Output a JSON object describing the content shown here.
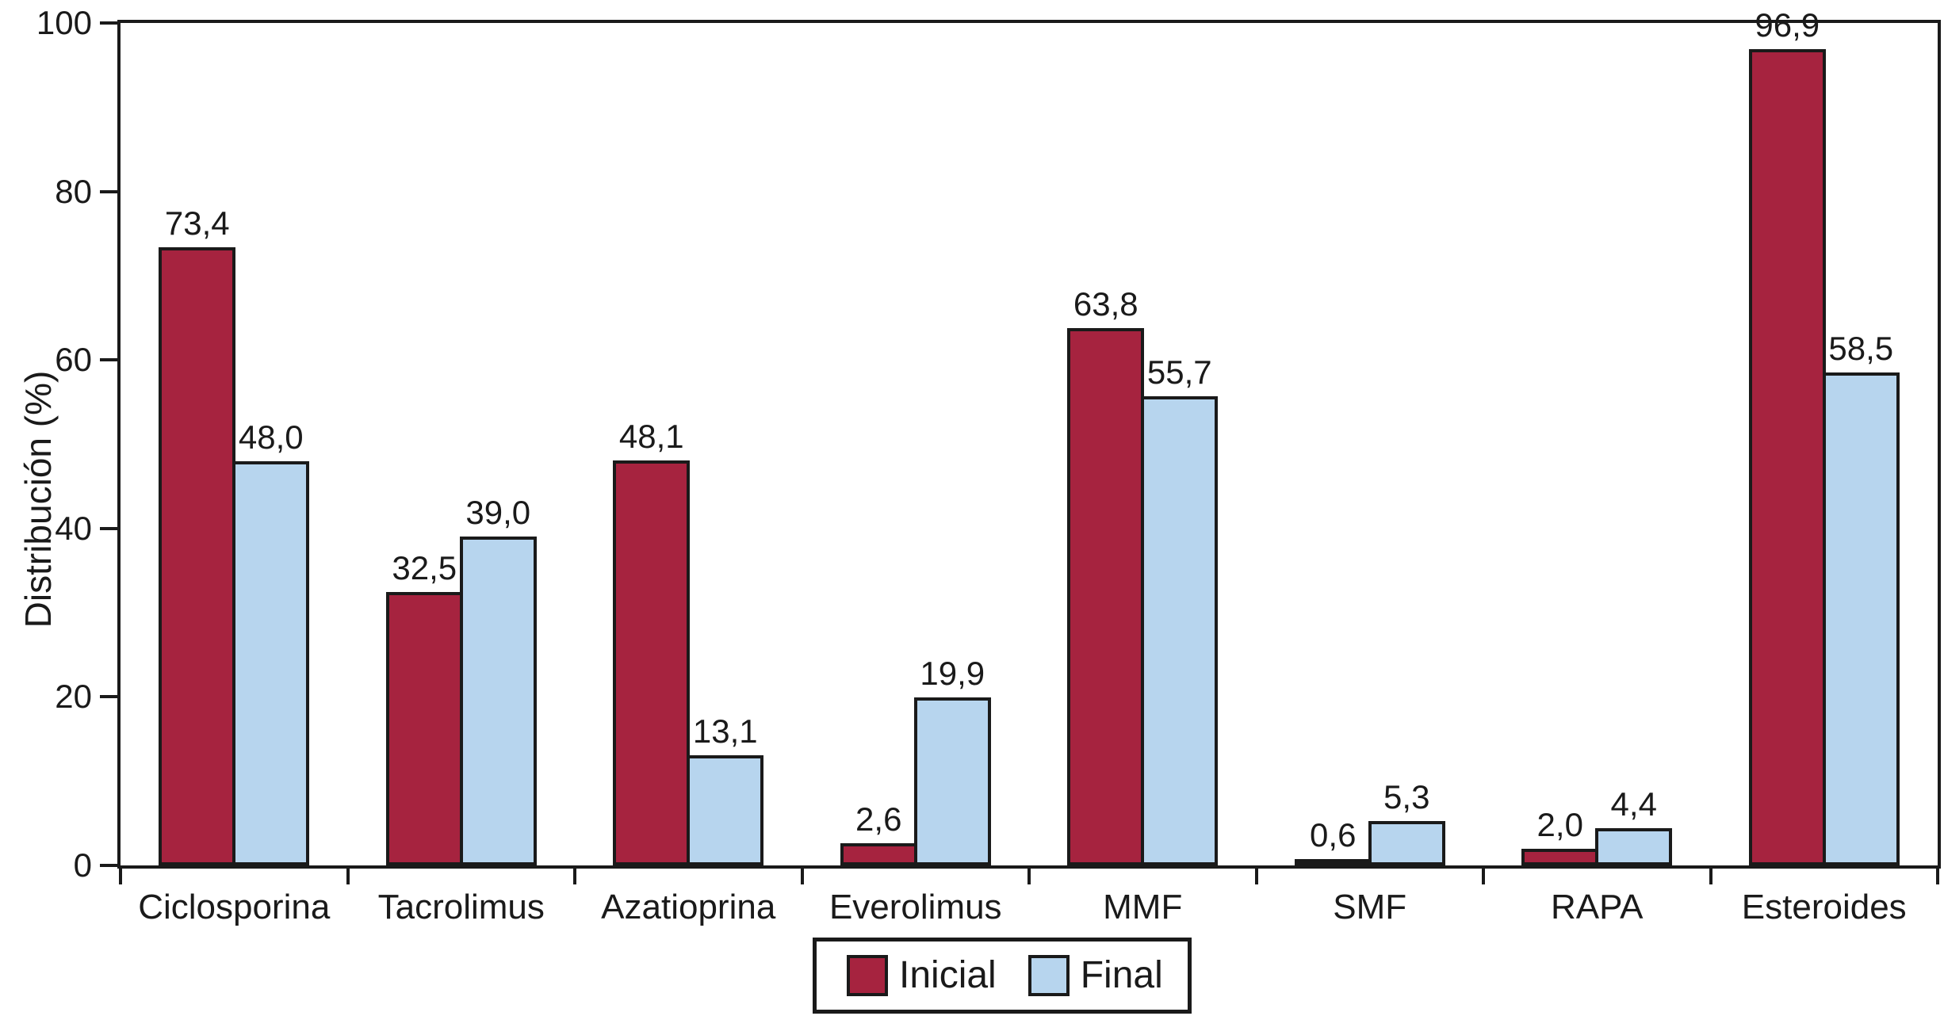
{
  "figure": {
    "background": "#ffffff",
    "axis_color": "#1a1a1a"
  },
  "chart_data": {
    "type": "bar",
    "title": "",
    "xlabel": "",
    "ylabel": "Distribución (%)",
    "ylim": [
      0,
      100
    ],
    "ytick_values": [
      0,
      20,
      40,
      60,
      80,
      100
    ],
    "yticks": [
      "0",
      "20",
      "40",
      "60",
      "80",
      "100"
    ],
    "grid": false,
    "frame": "full-box",
    "legend_position": "bottom-center",
    "categories": [
      "Ciclosporina",
      "Tacrolimus",
      "Azatioprina",
      "Everolimus",
      "MMF",
      "SMF",
      "RAPA",
      "Esteroides"
    ],
    "series": [
      {
        "name": "Inicial",
        "color": "#A6233F",
        "values": [
          73.4,
          32.5,
          48.1,
          2.6,
          63.8,
          0.6,
          2.0,
          96.9
        ],
        "labels": [
          "73,4",
          "32,5",
          "48,1",
          "2,6",
          "63,8",
          "0,6",
          "2,0",
          "96,9"
        ]
      },
      {
        "name": "Final",
        "color": "#B7D5EE",
        "values": [
          48.0,
          39.0,
          13.1,
          19.9,
          55.7,
          5.3,
          4.4,
          58.5
        ],
        "labels": [
          "48,0",
          "39,0",
          "13,1",
          "19,9",
          "55,7",
          "5,3",
          "4,4",
          "58,5"
        ]
      }
    ]
  }
}
